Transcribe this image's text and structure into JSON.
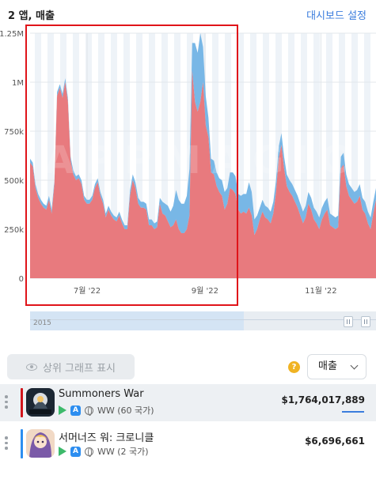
{
  "header": {
    "title": "2 앱, 매출",
    "dashboard_link": "대시보드 설정"
  },
  "chart_data": {
    "type": "area",
    "stacked": true,
    "y_ticks": [
      "0",
      "250k",
      "500k",
      "750k",
      "1M",
      "1.25M"
    ],
    "y_tick_values": [
      0,
      250000,
      500000,
      750000,
      1000000,
      1250000
    ],
    "ylim": [
      0,
      1250000
    ],
    "x_tick_labels": [
      "7월 '22",
      "9월 '22",
      "11월 '22"
    ],
    "x_tick_dates": [
      "2022-07-01",
      "2022-09-01",
      "2022-11-01"
    ],
    "x_start": "2022-06-01",
    "x_end": "2022-11-30",
    "watermark": "APPMAGIC",
    "navigator_label": "2015",
    "colors": {
      "series1": "#e87a7e",
      "series2": "#78b7e6"
    },
    "series": [
      {
        "name": "Summoners War",
        "values": [
          590000,
          570000,
          460000,
          410000,
          380000,
          360000,
          350000,
          400000,
          330000,
          480000,
          930000,
          970000,
          920000,
          1000000,
          900000,
          600000,
          530000,
          500000,
          510000,
          480000,
          400000,
          380000,
          380000,
          400000,
          460000,
          490000,
          420000,
          380000,
          310000,
          350000,
          320000,
          300000,
          290000,
          320000,
          280000,
          250000,
          250000,
          420000,
          500000,
          460000,
          380000,
          360000,
          360000,
          350000,
          270000,
          270000,
          250000,
          260000,
          380000,
          330000,
          320000,
          290000,
          260000,
          270000,
          300000,
          250000,
          230000,
          230000,
          250000,
          320000,
          1060000,
          900000,
          850000,
          900000,
          1000000,
          780000,
          720000,
          540000,
          530000,
          470000,
          440000,
          420000,
          350000,
          380000,
          460000,
          450000,
          430000,
          350000,
          330000,
          340000,
          330000,
          360000,
          320000,
          220000,
          250000,
          300000,
          340000,
          310000,
          300000,
          280000,
          330000,
          440000,
          610000,
          680000,
          560000,
          470000,
          440000,
          420000,
          390000,
          360000,
          320000,
          280000,
          310000,
          380000,
          350000,
          300000,
          280000,
          250000,
          300000,
          330000,
          350000,
          270000,
          260000,
          250000,
          260000,
          560000,
          580000,
          470000,
          420000,
          400000,
          380000,
          390000,
          420000,
          350000,
          330000,
          280000,
          250000,
          330000,
          400000
        ],
        "values_second": [
          20000,
          20000,
          20000,
          20000,
          20000,
          20000,
          20000,
          20000,
          20000,
          20000,
          20000,
          20000,
          20000,
          20000,
          20000,
          20000,
          20000,
          20000,
          20000,
          20000,
          20000,
          20000,
          20000,
          20000,
          20000,
          20000,
          20000,
          20000,
          20000,
          20000,
          20000,
          20000,
          20000,
          20000,
          20000,
          20000,
          20000,
          30000,
          30000,
          30000,
          30000,
          30000,
          30000,
          30000,
          30000,
          30000,
          30000,
          30000,
          30000,
          60000,
          60000,
          80000,
          80000,
          100000,
          150000,
          150000,
          150000,
          150000,
          170000,
          240000,
          140000,
          300000,
          300000,
          350000,
          180000,
          150000,
          100000,
          70000,
          70000,
          70000,
          70000,
          80000,
          90000,
          80000,
          80000,
          90000,
          90000,
          80000,
          90000,
          90000,
          100000,
          130000,
          120000,
          80000,
          70000,
          60000,
          60000,
          60000,
          60000,
          60000,
          60000,
          60000,
          60000,
          60000,
          60000,
          60000,
          60000,
          60000,
          60000,
          60000,
          60000,
          60000,
          60000,
          60000,
          60000,
          60000,
          60000,
          60000,
          60000,
          60000,
          60000,
          60000,
          60000,
          60000,
          60000,
          60000,
          60000,
          60000,
          60000,
          60000,
          60000,
          60000,
          60000,
          60000,
          60000,
          60000,
          60000,
          60000,
          60000
        ]
      }
    ]
  },
  "controls": {
    "toggle_label": "상위 그래프 표시",
    "help": "?",
    "metric_selected": "매출"
  },
  "apps": [
    {
      "name": "Summoners War",
      "region": "WW (60 국가)",
      "revenue": "$1,764,017,889",
      "color": "#d1141b",
      "appstore_glyph": "A"
    },
    {
      "name": "서머너즈 워: 크로니클",
      "region": "WW (2 국가)",
      "revenue": "$6,696,661",
      "color": "#2d8ef0",
      "appstore_glyph": "A"
    }
  ]
}
